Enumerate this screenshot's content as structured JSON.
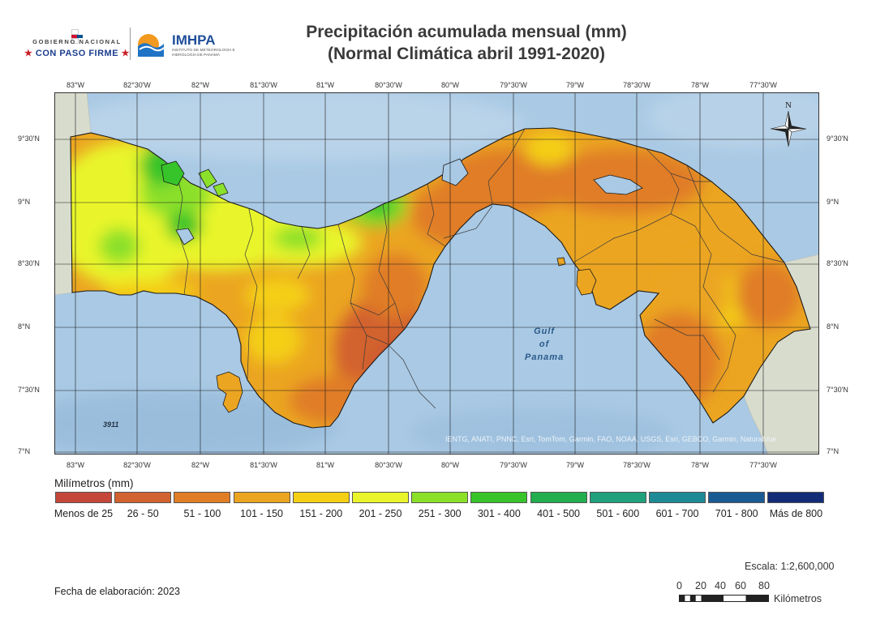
{
  "header": {
    "gov_line1": "GOBIERNO NACIONAL",
    "gov_line2": "CON PASO FIRME",
    "org_name": "IMHPA",
    "org_sub": "INSTITUTO DE METEOROLOGÍA E HIDROLOGÍA DE PANAMÁ",
    "title_line1": "Precipitación acumulada mensual (mm)",
    "title_line2": "(Normal Climática abril 1991-2020)"
  },
  "map": {
    "lon_labels": [
      "83°W",
      "82°30'W",
      "82°W",
      "81°30'W",
      "81°W",
      "80°30'W",
      "80°W",
      "79°30'W",
      "79°W",
      "78°30'W",
      "78°W",
      "77°30'W"
    ],
    "lat_labels": [
      "9°30'N",
      "9°N",
      "8°30'N",
      "8°N",
      "7°30'N",
      "7°N"
    ],
    "gulf_label": [
      "Gulf",
      "of",
      "Panama"
    ],
    "depth_label": "3911",
    "attribution": "IENTG, ANATI, PNNC, Esri, TomTom, Garmin, FAO, NOAA, USGS, Esri, GEBCO, Garmin, NaturalVue",
    "north_label": "N",
    "colors": {
      "sea": "#a9c9e4",
      "land_bg": "#d6d9cc",
      "border": "#1a1a1a"
    }
  },
  "legend": {
    "title": "Milímetros (mm)",
    "classes": [
      {
        "label": "Menos de 25",
        "color": "#c4473a"
      },
      {
        "label": "26 - 50",
        "color": "#d2622f"
      },
      {
        "label": "51 - 100",
        "color": "#e07d25"
      },
      {
        "label": "101 - 150",
        "color": "#eba521"
      },
      {
        "label": "151 - 200",
        "color": "#f4cf14"
      },
      {
        "label": "201 - 250",
        "color": "#e9f52a"
      },
      {
        "label": "251 - 300",
        "color": "#8be02a"
      },
      {
        "label": "301 - 400",
        "color": "#37c42a"
      },
      {
        "label": "401 - 500",
        "color": "#22ad4e"
      },
      {
        "label": "501 - 600",
        "color": "#21a07c"
      },
      {
        "label": "601 - 700",
        "color": "#1e8a96"
      },
      {
        "label": "701 - 800",
        "color": "#1a5b94"
      },
      {
        "label": "Más de 800",
        "color": "#122c78"
      }
    ]
  },
  "footer": {
    "scale_text": "Escala: 1:2,600,000",
    "scale_ticks": [
      "0",
      "20",
      "40",
      "60",
      "80"
    ],
    "scale_unit": "Kilómetros",
    "date_text": "Fecha de elaboración: 2023"
  }
}
